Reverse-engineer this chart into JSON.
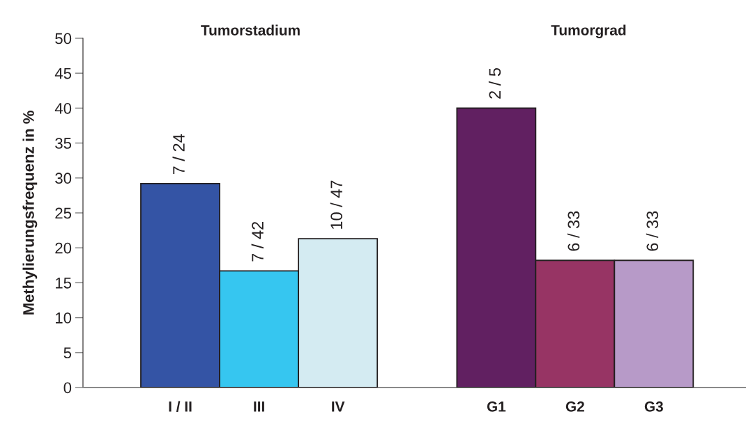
{
  "chart_data": [
    {
      "type": "bar",
      "title": "Tumorstadium",
      "ylabel": "Methylierungsfrequenz in %",
      "categories": [
        "I / II",
        "III",
        "IV"
      ],
      "values": [
        29.2,
        16.7,
        21.3
      ],
      "colors": [
        "#3454a5",
        "#36c6f0",
        "#d4ebf2"
      ],
      "annotations": [
        {
          "text": "7 / 24",
          "x": "I / II",
          "y": 29.2
        },
        {
          "text": "7 / 42",
          "x": "III",
          "y": 16.7
        },
        {
          "text": "10 / 47",
          "x": "IV",
          "y": 21.3
        }
      ],
      "ylim": [
        0,
        50
      ],
      "yticks": [
        0,
        5,
        10,
        15,
        20,
        25,
        30,
        35,
        40,
        45,
        50
      ],
      "grid": false,
      "legend": false
    },
    {
      "type": "bar",
      "title": "Tumorgrad",
      "categories": [
        "G1",
        "G2",
        "G3"
      ],
      "values": [
        40,
        18.2,
        18.2
      ],
      "colors": [
        "#612061",
        "#973464",
        "#b79ac8"
      ],
      "annotations": [
        {
          "text": "2 / 5",
          "x": "G1",
          "y": 40
        },
        {
          "text": "6 / 33",
          "x": "G2",
          "y": 18.2
        },
        {
          "text": "6 / 33",
          "x": "G3",
          "y": 18.2
        }
      ],
      "ylim": [
        0,
        50
      ],
      "tick_labels": "x",
      "grid": false,
      "legend": false
    }
  ]
}
